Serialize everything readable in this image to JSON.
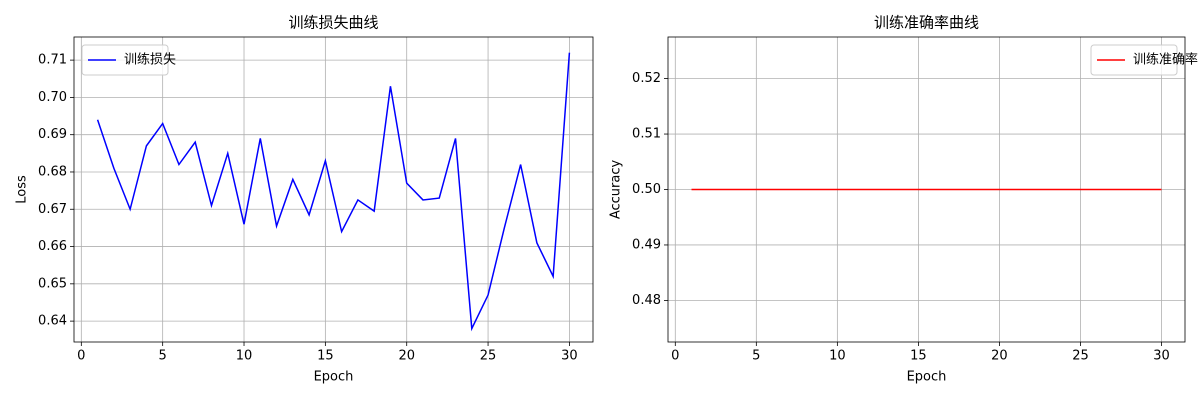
{
  "chart_data": [
    {
      "type": "line",
      "title": "训练损失曲线",
      "xlabel": "Epoch",
      "ylabel": "Loss",
      "x": [
        1,
        2,
        3,
        4,
        5,
        6,
        7,
        8,
        9,
        10,
        11,
        12,
        13,
        14,
        15,
        16,
        17,
        18,
        19,
        20,
        21,
        22,
        23,
        24,
        25,
        26,
        27,
        28,
        29,
        30
      ],
      "series": [
        {
          "name": "训练损失",
          "color": "#0000ff",
          "values": [
            0.694,
            0.681,
            0.67,
            0.687,
            0.693,
            0.682,
            0.688,
            0.671,
            0.685,
            0.666,
            0.689,
            0.6655,
            0.678,
            0.6685,
            0.683,
            0.664,
            0.6725,
            0.6695,
            0.703,
            0.677,
            0.6725,
            0.673,
            0.689,
            0.638,
            0.647,
            0.665,
            0.682,
            0.661,
            0.652,
            0.712
          ]
        }
      ],
      "xlim": [
        -0.45,
        31.45
      ],
      "xticks": [
        0,
        5,
        10,
        15,
        20,
        25,
        30
      ],
      "ylim": [
        0.6344,
        0.7162
      ],
      "yticks": [
        0.64,
        0.65,
        0.66,
        0.67,
        0.68,
        0.69,
        {
          "value": 0.7,
          "label": "0.70"
        },
        0.71
      ],
      "grid": true,
      "legend": "upper-left"
    },
    {
      "type": "line",
      "title": "训练准确率曲线",
      "xlabel": "Epoch",
      "ylabel": "Accuracy",
      "x": [
        1,
        2,
        3,
        4,
        5,
        6,
        7,
        8,
        9,
        10,
        11,
        12,
        13,
        14,
        15,
        16,
        17,
        18,
        19,
        20,
        21,
        22,
        23,
        24,
        25,
        26,
        27,
        28,
        29,
        30
      ],
      "series": [
        {
          "name": "训练准确率",
          "color": "#ff0000",
          "values": [
            0.5,
            0.5,
            0.5,
            0.5,
            0.5,
            0.5,
            0.5,
            0.5,
            0.5,
            0.5,
            0.5,
            0.5,
            0.5,
            0.5,
            0.5,
            0.5,
            0.5,
            0.5,
            0.5,
            0.5,
            0.5,
            0.5,
            0.5,
            0.5,
            0.5,
            0.5,
            0.5,
            0.5,
            0.5,
            0.5
          ]
        }
      ],
      "xlim": [
        -0.45,
        31.45
      ],
      "xticks": [
        0,
        5,
        10,
        15,
        20,
        25,
        30
      ],
      "ylim": [
        0.4725,
        0.5275
      ],
      "yticks": [
        0.48,
        0.49,
        {
          "value": 0.5,
          "label": "0.50"
        },
        0.51,
        0.52
      ],
      "grid": true,
      "legend": "upper-right"
    }
  ]
}
